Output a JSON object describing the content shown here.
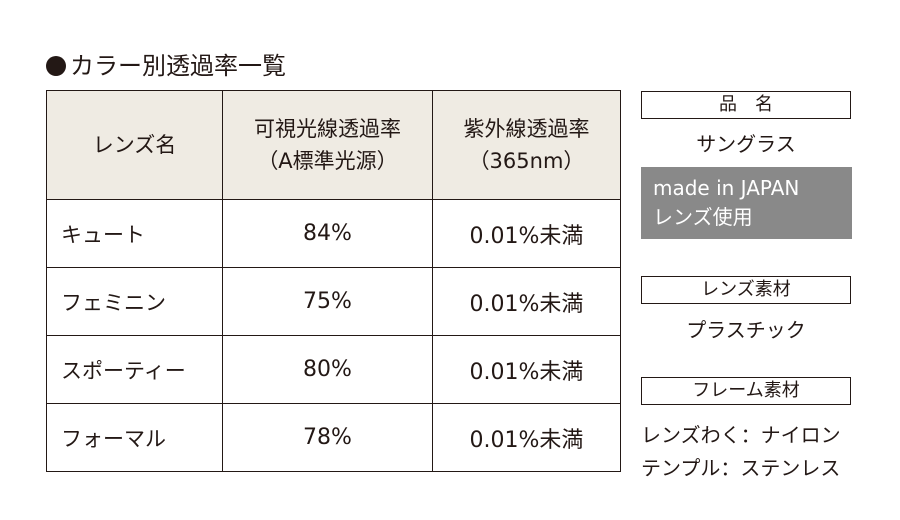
{
  "title": "カラー別透過率一覧",
  "table": {
    "headers": {
      "name": "レンズ名",
      "visible_line1": "可視光線透過率",
      "visible_line2": "（A標準光源）",
      "uv_line1": "紫外線透過率",
      "uv_line2": "（365nm）"
    },
    "rows": [
      {
        "name": "キュート",
        "visible": "84%",
        "uv": "0.01%未満"
      },
      {
        "name": "フェミニン",
        "visible": "75%",
        "uv": "0.01%未満"
      },
      {
        "name": "スポーティー",
        "visible": "80%",
        "uv": "0.01%未満"
      },
      {
        "name": "フォーマル",
        "visible": "78%",
        "uv": "0.01%未満"
      }
    ]
  },
  "product": {
    "label": "品　名",
    "value": "サングラス",
    "made_line1": "made in JAPAN",
    "made_line2": "レンズ使用"
  },
  "lens_material": {
    "label": "レンズ素材",
    "value": "プラスチック"
  },
  "frame_material": {
    "label": "フレーム素材",
    "line1": "レンズわく：ナイロン",
    "line2": "テンプル：ステンレス"
  },
  "colors": {
    "text": "#231815",
    "header_bg": "#efebe3",
    "made_box_bg": "#898989"
  }
}
